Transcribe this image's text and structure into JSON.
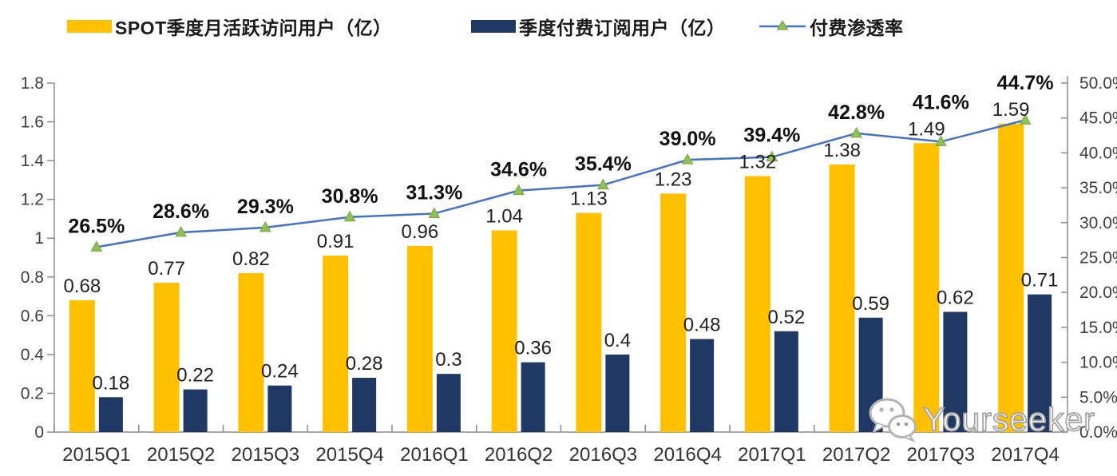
{
  "watermark": {
    "text": "Yourseeker",
    "icon": "wechat-icon"
  },
  "chart_data": {
    "type": "combo: grouped bar (left axis) + line with triangle markers (right axis)",
    "title": "",
    "legend_position": "top",
    "grid": "off",
    "categories": [
      "2015Q1",
      "2015Q2",
      "2015Q3",
      "2015Q4",
      "2016Q1",
      "2016Q2",
      "2016Q3",
      "2016Q4",
      "2017Q1",
      "2017Q2",
      "2017Q3",
      "2017Q4"
    ],
    "series": [
      {
        "name": "SPOT季度月活跃访问用户（亿）",
        "type": "bar",
        "axis": "left",
        "color": "#FFC000",
        "values": [
          0.68,
          0.77,
          0.82,
          0.91,
          0.96,
          1.04,
          1.13,
          1.23,
          1.32,
          1.38,
          1.49,
          1.59
        ],
        "labels": [
          "0.68",
          "0.77",
          "0.82",
          "0.91",
          "0.96",
          "1.04",
          "1.13",
          "1.23",
          "1.32",
          "1.38",
          "1.49",
          "1.59"
        ]
      },
      {
        "name": "季度付费订阅用户（亿）",
        "type": "bar",
        "axis": "left",
        "color": "#1F3864",
        "values": [
          0.18,
          0.22,
          0.24,
          0.28,
          0.3,
          0.36,
          0.4,
          0.48,
          0.52,
          0.59,
          0.62,
          0.71
        ],
        "labels": [
          "0.18",
          "0.22",
          "0.24",
          "0.28",
          "0.3",
          "0.36",
          "0.4",
          "0.48",
          "0.52",
          "0.59",
          "0.62",
          "0.71"
        ]
      },
      {
        "name": "付费渗透率",
        "type": "line",
        "axis": "right",
        "color": "#4472C4",
        "marker": "triangle",
        "marker_color": "#8FBF55",
        "marker_stroke": "#74A83E",
        "values": [
          26.5,
          28.6,
          29.3,
          30.8,
          31.3,
          34.6,
          35.4,
          39.0,
          39.4,
          42.8,
          41.6,
          44.7
        ],
        "labels": [
          "26.5%",
          "28.6%",
          "29.3%",
          "30.8%",
          "31.3%",
          "34.6%",
          "35.4%",
          "39.0%",
          "39.4%",
          "42.8%",
          "41.6%",
          "44.7%"
        ]
      }
    ],
    "left_axis": {
      "min": 0,
      "max": 1.8,
      "step": 0.2,
      "tick_labels": [
        "1.8",
        "1.6",
        "1.4",
        "1.2",
        "1",
        "0.8",
        "0.6",
        "0.4",
        "0.2",
        "0"
      ]
    },
    "right_axis": {
      "min": 0,
      "max": 50,
      "step": 5,
      "tick_labels": [
        "50.0%",
        "45.0%",
        "40.0%",
        "35.0%",
        "30.0%",
        "25.0%",
        "20.0%",
        "15.0%",
        "10.0%",
        "5.0%",
        "0.0%"
      ]
    },
    "axis_color": "#8c8c8c"
  }
}
